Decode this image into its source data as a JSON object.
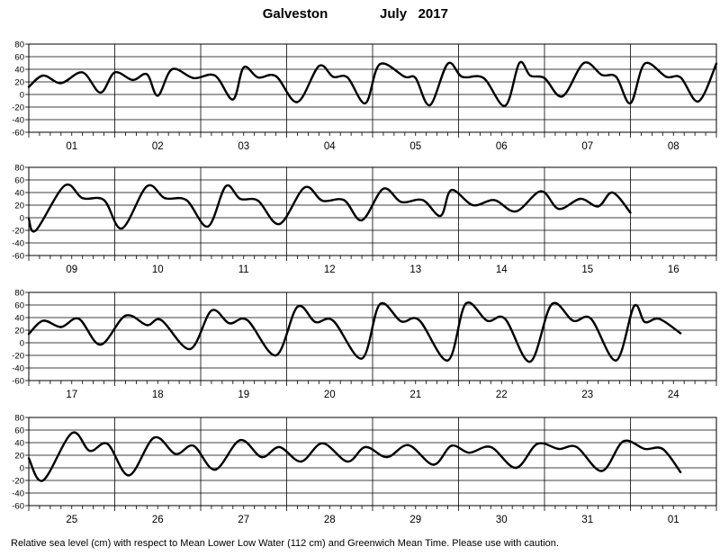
{
  "title": {
    "location": "Galveston",
    "period": "July   2017"
  },
  "footer": "Relative sea level (cm) with respect to Mean Lower Low Water (112 cm) and Greenwich Mean Time. Please use with caution.",
  "chart_data": {
    "type": "line",
    "panels": [
      {
        "days": [
          "01",
          "02",
          "03",
          "04",
          "05",
          "06",
          "07",
          "08"
        ],
        "ylim": [
          -60,
          80
        ],
        "yticks": [
          80,
          60,
          40,
          20,
          0,
          -20,
          -40,
          -60
        ],
        "x": [
          0,
          4,
          9,
          15,
          20,
          24,
          29,
          33,
          36,
          40,
          46,
          52,
          57,
          60,
          64,
          69,
          75,
          81,
          85,
          89,
          94,
          98,
          105,
          108,
          112,
          117,
          121,
          127,
          133,
          137,
          140,
          144,
          149,
          155,
          160,
          164,
          168,
          172,
          178,
          182,
          187,
          192
        ],
        "y": [
          12,
          30,
          18,
          35,
          3,
          35,
          23,
          32,
          -2,
          40,
          26,
          30,
          -8,
          43,
          27,
          29,
          -12,
          45,
          28,
          27,
          -14,
          48,
          28,
          26,
          -17,
          49,
          28,
          26,
          -18,
          50,
          30,
          26,
          -3,
          50,
          31,
          28,
          -14,
          49,
          28,
          27,
          -11,
          49
        ]
      },
      {
        "days": [
          "09",
          "10",
          "11",
          "12",
          "13",
          "14",
          "15",
          "16"
        ],
        "ylim": [
          -60,
          80
        ],
        "yticks": [
          80,
          60,
          40,
          20,
          0,
          -20,
          -40,
          -60
        ],
        "x": [
          0,
          2,
          10,
          15,
          21,
          26,
          33,
          38,
          44,
          50,
          55,
          59,
          64,
          70,
          77,
          82,
          88,
          93,
          99,
          104,
          110,
          115,
          118,
          124,
          130,
          136,
          143,
          148,
          154,
          159,
          163,
          168
        ],
        "y": [
          -2,
          -20,
          51,
          31,
          28,
          -17,
          50,
          31,
          28,
          -14,
          50,
          30,
          27,
          -10,
          48,
          27,
          28,
          -4,
          46,
          25,
          28,
          3,
          44,
          20,
          28,
          10,
          42,
          14,
          30,
          18,
          40,
          8
        ]
      },
      {
        "days": [
          "17",
          "18",
          "19",
          "20",
          "21",
          "22",
          "23",
          "24"
        ],
        "ylim": [
          -60,
          80
        ],
        "yticks": [
          80,
          60,
          40,
          20,
          0,
          -20,
          -40,
          -60
        ],
        "x": [
          0,
          4,
          9,
          14,
          20,
          27,
          33,
          37,
          45,
          51,
          56,
          61,
          69,
          75,
          80,
          85,
          93,
          98,
          104,
          109,
          117,
          122,
          128,
          133,
          140,
          146,
          152,
          157,
          164,
          169,
          172,
          176,
          182
        ],
        "y": [
          14,
          35,
          25,
          38,
          -3,
          43,
          28,
          36,
          -10,
          51,
          31,
          36,
          -20,
          57,
          33,
          35,
          -25,
          61,
          34,
          36,
          -28,
          62,
          35,
          38,
          -30,
          61,
          35,
          38,
          -28,
          58,
          33,
          38,
          15
        ]
      },
      {
        "days": [
          "25",
          "26",
          "27",
          "28",
          "29",
          "30",
          "31",
          "01"
        ],
        "ylim": [
          -60,
          80
        ],
        "yticks": [
          80,
          60,
          40,
          20,
          0,
          -20,
          -40,
          -60
        ],
        "x": [
          0,
          4,
          12,
          17,
          22,
          28,
          35,
          41,
          46,
          52,
          59,
          65,
          70,
          76,
          82,
          89,
          94,
          100,
          106,
          113,
          118,
          123,
          129,
          136,
          142,
          148,
          153,
          160,
          166,
          172,
          177,
          182
        ],
        "y": [
          15,
          -20,
          55,
          27,
          38,
          -12,
          48,
          22,
          35,
          -3,
          44,
          17,
          33,
          10,
          39,
          10,
          33,
          17,
          36,
          5,
          35,
          24,
          33,
          0,
          38,
          30,
          33,
          -5,
          42,
          30,
          30,
          -7
        ]
      }
    ]
  }
}
